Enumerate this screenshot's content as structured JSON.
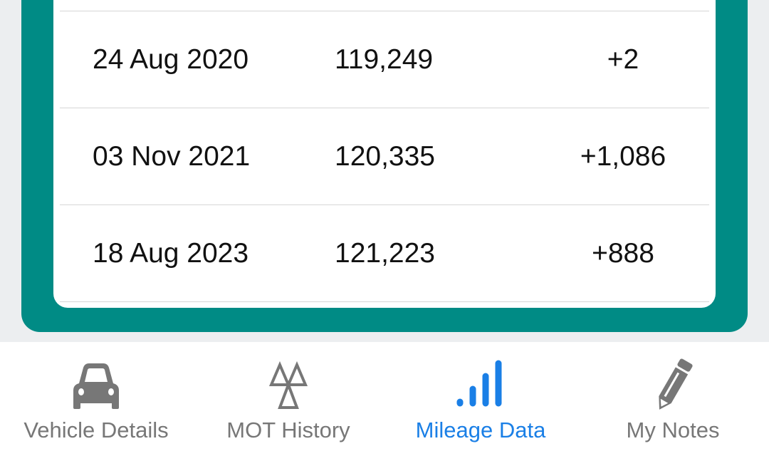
{
  "mileage_table": {
    "rows": [
      {
        "date": "24 Aug 2020",
        "mileage": "119,249",
        "difference": "+2"
      },
      {
        "date": "03 Nov 2021",
        "mileage": "120,335",
        "difference": "+1,086"
      },
      {
        "date": "18 Aug 2023",
        "mileage": "121,223",
        "difference": "+888"
      }
    ]
  },
  "bottom_nav": {
    "items": [
      {
        "label": "Vehicle Details",
        "icon": "car-icon"
      },
      {
        "label": "MOT History",
        "icon": "mot-triangles-icon"
      },
      {
        "label": "Mileage Data",
        "icon": "signal-bars-icon",
        "active": true
      },
      {
        "label": "My Notes",
        "icon": "pencil-icon"
      }
    ],
    "active_color": "#1a7fe6",
    "inactive_color": "#777777"
  },
  "colors": {
    "panel": "#008b85",
    "background": "#eceef0"
  }
}
